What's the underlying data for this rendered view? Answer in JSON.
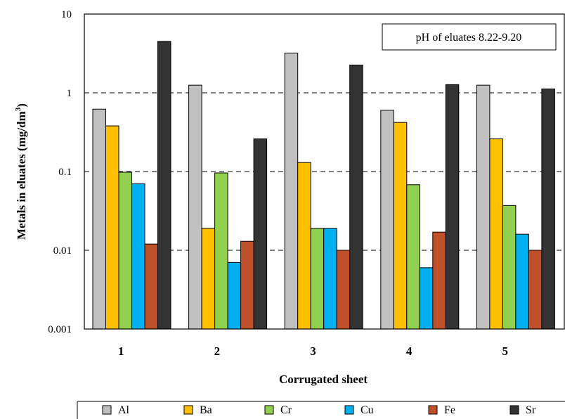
{
  "chart_data": {
    "type": "bar",
    "yscale": "log",
    "ylim": [
      0.001,
      10
    ],
    "yticks": [
      "0.001",
      "0.01",
      "0.1",
      "1",
      "10"
    ],
    "xlabel": "Corrugated sheet",
    "ylabel": "Metals in eluates (mg/dm",
    "ylabel_sup": "3",
    "ylabel_close": ")",
    "annotation": "pH of eluates 8.22-9.20",
    "grid": "dashed horizontal at decades",
    "legend_position": "bottom",
    "categories": [
      "1",
      "2",
      "3",
      "4",
      "5"
    ],
    "series": [
      {
        "name": "Al",
        "color": "#c0c0c0",
        "values": [
          0.62,
          1.25,
          3.2,
          0.6,
          1.25
        ]
      },
      {
        "name": "Ba",
        "color": "#ffc000",
        "values": [
          0.38,
          0.019,
          0.13,
          0.42,
          0.26
        ]
      },
      {
        "name": "Cr",
        "color": "#92d050",
        "values": [
          0.098,
          0.096,
          0.019,
          0.068,
          0.037
        ]
      },
      {
        "name": "Cu",
        "color": "#00b0f0",
        "values": [
          0.07,
          0.007,
          0.019,
          0.006,
          0.016
        ]
      },
      {
        "name": "Fe",
        "color": "#c0502a",
        "values": [
          0.012,
          0.013,
          0.01,
          0.017,
          0.01
        ]
      },
      {
        "name": "Sr",
        "color": "#333333",
        "values": [
          4.5,
          0.26,
          2.25,
          1.27,
          1.12
        ]
      }
    ]
  }
}
